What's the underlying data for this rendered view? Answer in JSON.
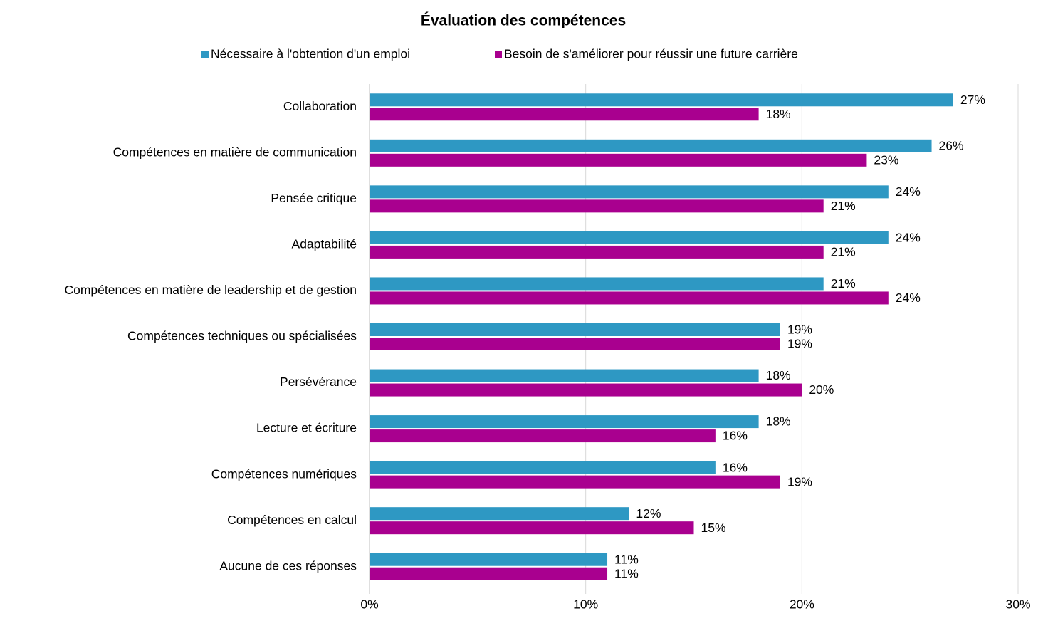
{
  "chart_data": {
    "type": "bar",
    "orientation": "horizontal",
    "title": "Évaluation des compétences",
    "categories": [
      "Collaboration",
      "Compétences en matière de communication",
      "Pensée critique",
      "Adaptabilité",
      "Compétences en matière de leadership et de gestion",
      "Compétences techniques ou spécialisées",
      "Persévérance",
      "Lecture et écriture",
      "Compétences numériques",
      "Compétences en calcul",
      "Aucune de ces réponses"
    ],
    "series": [
      {
        "name": "Nécessaire à l'obtention d'un emploi",
        "color": "#2E98C3",
        "values": [
          27,
          26,
          24,
          24,
          21,
          19,
          18,
          18,
          16,
          12,
          11
        ],
        "value_labels": [
          "27%",
          "26%",
          "24%",
          "24%",
          "21%",
          "19%",
          "18%",
          "18%",
          "16%",
          "12%",
          "11%"
        ]
      },
      {
        "name": "Besoin de s'améliorer pour réussir une future carrière",
        "color": "#A9008F",
        "values": [
          18,
          23,
          21,
          21,
          24,
          19,
          20,
          16,
          19,
          15,
          11
        ],
        "value_labels": [
          "18%",
          "23%",
          "21%",
          "21%",
          "24%",
          "19%",
          "20%",
          "16%",
          "19%",
          "15%",
          "11%"
        ]
      }
    ],
    "xlim": [
      0,
      30
    ],
    "xticks": [
      {
        "value": 0,
        "label": "0%"
      },
      {
        "value": 10,
        "label": "10%"
      },
      {
        "value": 20,
        "label": "20%"
      },
      {
        "value": 30,
        "label": "30%"
      }
    ],
    "grid": true,
    "legend": "top"
  }
}
